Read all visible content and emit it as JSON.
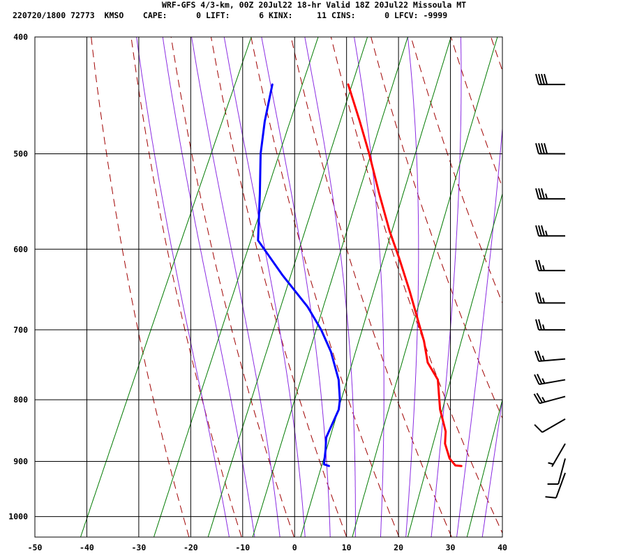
{
  "header": {
    "title": "WRF-GFS 4/3-km, 00Z 20Jul22 18-hr Valid 18Z 20Jul22 Missoula MT",
    "stats": "220720/1800 72773  KMSO    CAPE:      0 LIFT:      6 KINX:     11 CINS:      0 LFCV: -9999"
  },
  "chart_data": {
    "type": "line",
    "subtype": "skew-T log-P sounding",
    "xlabel": "",
    "ylabel": "",
    "x_unit": "deg C",
    "y_unit": "hPa",
    "xlim": [
      -50,
      40
    ],
    "ylim": [
      1040,
      400
    ],
    "y_scale": "log",
    "x_ticks": [
      -50,
      -40,
      -30,
      -20,
      -10,
      0,
      10,
      20,
      30,
      40
    ],
    "y_ticks": [
      400,
      500,
      600,
      700,
      800,
      900,
      1000
    ],
    "grid": true,
    "legend": "none",
    "skew_deg_per_log_p": 43.5,
    "series": [
      {
        "role": "temperature",
        "color": "#ff0000",
        "points": [
          {
            "p": 908,
            "t": 26.2
          },
          {
            "p": 907,
            "t": 25.0
          },
          {
            "p": 895,
            "t": 23.3
          },
          {
            "p": 870,
            "t": 21.2
          },
          {
            "p": 850,
            "t": 20.3
          },
          {
            "p": 815,
            "t": 17.4
          },
          {
            "p": 790,
            "t": 15.8
          },
          {
            "p": 770,
            "t": 14.5
          },
          {
            "p": 745,
            "t": 11.1
          },
          {
            "p": 715,
            "t": 8.6
          },
          {
            "p": 690,
            "t": 6.0
          },
          {
            "p": 650,
            "t": 1.7
          },
          {
            "p": 610,
            "t": -3.1
          },
          {
            "p": 580,
            "t": -7.1
          },
          {
            "p": 540,
            "t": -12.2
          },
          {
            "p": 500,
            "t": -17.5
          },
          {
            "p": 470,
            "t": -22.0
          },
          {
            "p": 438,
            "t": -27.3
          }
        ]
      },
      {
        "role": "dewpoint",
        "color": "#0000ff",
        "points": [
          {
            "p": 908,
            "t": 0.7
          },
          {
            "p": 905,
            "t": -0.4
          },
          {
            "p": 880,
            "t": -1.3
          },
          {
            "p": 860,
            "t": -2.2
          },
          {
            "p": 815,
            "t": -2.1
          },
          {
            "p": 800,
            "t": -2.7
          },
          {
            "p": 770,
            "t": -4.6
          },
          {
            "p": 730,
            "t": -8.4
          },
          {
            "p": 700,
            "t": -12.1
          },
          {
            "p": 670,
            "t": -16.6
          },
          {
            "p": 630,
            "t": -24.2
          },
          {
            "p": 590,
            "t": -31.7
          },
          {
            "p": 540,
            "t": -35.2
          },
          {
            "p": 500,
            "t": -38.4
          },
          {
            "p": 470,
            "t": -40.3
          },
          {
            "p": 438,
            "t": -41.9
          }
        ]
      }
    ],
    "reference_lines": {
      "isotherm_color": "#000000",
      "dry_adiabat_color": "#a00000",
      "moist_adiabat_color": "#8a2be2",
      "mixing_ratio_color": "#007a00",
      "dry_adiabats_theta_K": [
        250,
        260,
        270,
        280,
        290,
        300,
        310,
        320,
        330,
        340,
        350,
        360,
        370,
        380,
        390
      ],
      "moist_adiabats_thetaw_C": [
        -15,
        -10,
        -5,
        0,
        5,
        10,
        15,
        20,
        25,
        30,
        35
      ],
      "mixing_ratios_gkg": [
        0.1,
        0.4,
        1,
        2,
        4,
        8,
        16,
        32
      ]
    },
    "winds": [
      {
        "p": 438,
        "speed_kt": 40,
        "dir_deg": 270
      },
      {
        "p": 500,
        "speed_kt": 40,
        "dir_deg": 270
      },
      {
        "p": 545,
        "speed_kt": 35,
        "dir_deg": 270
      },
      {
        "p": 585,
        "speed_kt": 35,
        "dir_deg": 270
      },
      {
        "p": 625,
        "speed_kt": 25,
        "dir_deg": 270
      },
      {
        "p": 665,
        "speed_kt": 25,
        "dir_deg": 270
      },
      {
        "p": 700,
        "speed_kt": 25,
        "dir_deg": 270
      },
      {
        "p": 740,
        "speed_kt": 25,
        "dir_deg": 265
      },
      {
        "p": 770,
        "speed_kt": 25,
        "dir_deg": 260
      },
      {
        "p": 795,
        "speed_kt": 25,
        "dir_deg": 255
      },
      {
        "p": 830,
        "speed_kt": 10,
        "dir_deg": 240
      },
      {
        "p": 870,
        "speed_kt": 5,
        "dir_deg": 210
      },
      {
        "p": 895,
        "speed_kt": 10,
        "dir_deg": 195
      },
      {
        "p": 920,
        "speed_kt": 10,
        "dir_deg": 200
      }
    ]
  }
}
